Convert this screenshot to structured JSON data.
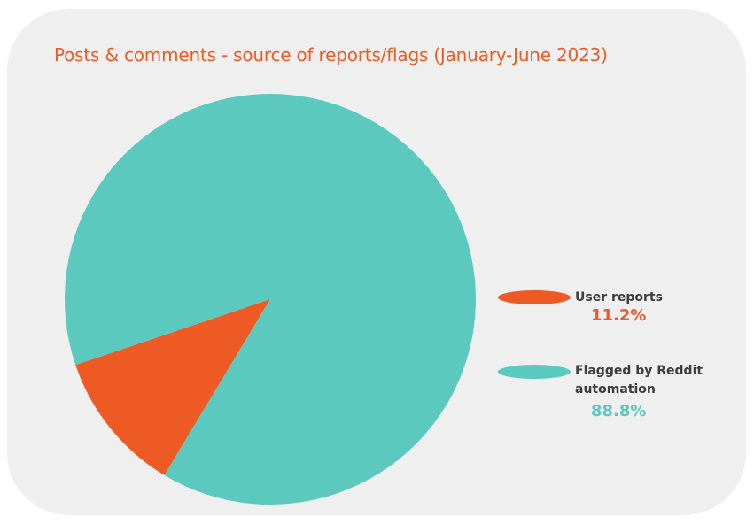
{
  "chart_data": {
    "type": "pie",
    "title": "Posts & comments - source of reports/flags (January-June 2023)",
    "slices": [
      {
        "label": "User reports",
        "value": 11.2,
        "display": "11.2%",
        "color": "#ee5a24"
      },
      {
        "label": "Flagged by Reddit automation",
        "value": 88.8,
        "display": "88.8%",
        "color": "#5bc9bd"
      }
    ],
    "legend_position": "right"
  },
  "colors": {
    "title": "#ee5a24",
    "background": "#efefef",
    "legend_text": "#3d3d3d"
  }
}
